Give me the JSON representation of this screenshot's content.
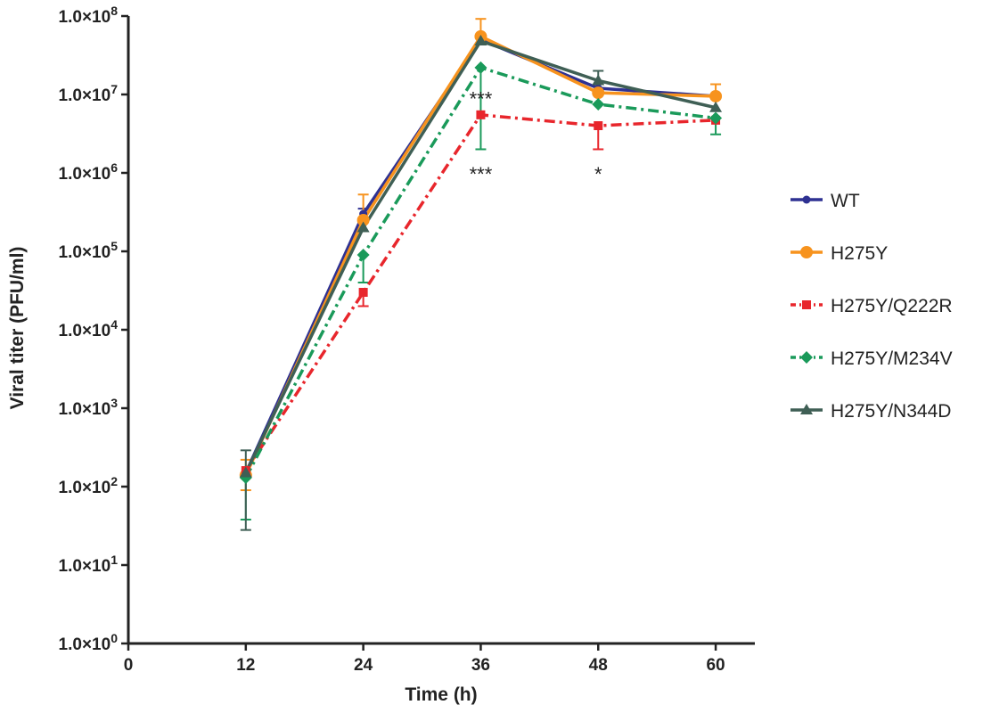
{
  "chart_data": {
    "type": "line",
    "title": "",
    "xlabel": "Time (h)",
    "ylabel": "Viral titer (PFU/ml)",
    "xlim": [
      0,
      64
    ],
    "ylim": [
      1,
      100000000
    ],
    "yscale": "log",
    "xticks": [
      0,
      12,
      24,
      36,
      48,
      60
    ],
    "xtick_labels": [
      "0",
      "12",
      "24",
      "36",
      "48",
      "60"
    ],
    "yticks": [
      1,
      10,
      100,
      1000,
      10000,
      100000,
      1000000,
      10000000,
      100000000
    ],
    "ytick_mantissa": [
      "1.0×10",
      "1.0×10",
      "1.0×10",
      "1.0×10",
      "1.0×10",
      "1.0×10",
      "1.0×10",
      "1.0×10",
      "1.0×10"
    ],
    "ytick_exponent": [
      "0",
      "1",
      "2",
      "3",
      "4",
      "5",
      "6",
      "7",
      "8"
    ],
    "grid": false,
    "legend_position": "right",
    "x": [
      12,
      24,
      36,
      48,
      60
    ],
    "series": [
      {
        "name": "WT",
        "color": "#2e3192",
        "marker": "circle-small",
        "dash": "solid",
        "values": [
          150,
          300000,
          50000000,
          12000000,
          9500000
        ],
        "err_low": [
          150,
          300000,
          50000000,
          12000000,
          9500000
        ],
        "err_high": [
          150,
          350000,
          50000000,
          12000000,
          9500000
        ]
      },
      {
        "name": "H275Y",
        "color": "#f7931e",
        "marker": "circle",
        "dash": "solid",
        "values": [
          140,
          250000,
          55000000,
          10500000,
          9500000
        ],
        "err_low": [
          90,
          250000,
          55000000,
          10500000,
          9500000
        ],
        "err_high": [
          220,
          530000,
          92000000,
          10500000,
          13500000
        ]
      },
      {
        "name": "H275Y/Q222R",
        "color": "#e8262c",
        "marker": "square",
        "dash": "dashdot",
        "values": [
          160,
          30000,
          5500000,
          4000000,
          4700000
        ],
        "err_low": [
          160,
          20000,
          5500000,
          2000000,
          4700000
        ],
        "err_high": [
          160,
          30000,
          5500000,
          4000000,
          4700000
        ]
      },
      {
        "name": "H275Y/M234V",
        "color": "#1a9a5a",
        "marker": "diamond",
        "dash": "dashdot",
        "values": [
          130,
          90000,
          22000000,
          7500000,
          5000000
        ],
        "err_low": [
          38,
          40000,
          2000000,
          7500000,
          3100000
        ],
        "err_high": [
          130,
          90000,
          22000000,
          7500000,
          5000000
        ]
      },
      {
        "name": "H275Y/N344D",
        "color": "#3f5f55",
        "marker": "triangle",
        "dash": "solid",
        "values": [
          150,
          200000,
          48000000,
          15000000,
          6800000
        ],
        "err_low": [
          28,
          200000,
          48000000,
          15000000,
          6800000
        ],
        "err_high": [
          290,
          200000,
          48000000,
          20000000,
          6800000
        ]
      }
    ],
    "annotations": [
      {
        "text": "***",
        "x": 36,
        "y": 11000000
      },
      {
        "text": "***",
        "x": 36,
        "y": 1200000
      },
      {
        "text": "*",
        "x": 48,
        "y": 1200000
      }
    ]
  }
}
